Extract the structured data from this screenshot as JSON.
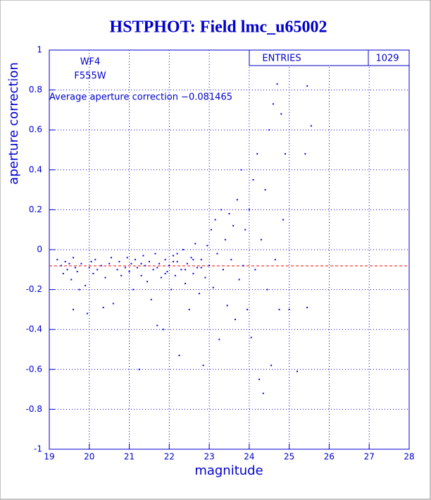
{
  "chart_data": {
    "type": "scatter",
    "title": "HSTPHOT: Field lmc_u65002",
    "x_label": "magnitude",
    "y_label": "aperture correction",
    "annotations": [
      "WF4",
      "F555W",
      "Average aperture correction −0.081465"
    ],
    "stats": {
      "label": "ENTRIES",
      "value": 1029
    },
    "average_line": {
      "value": -0.081465,
      "color": "#ff0000"
    },
    "color": "#0000ff",
    "grid": true,
    "xlim": [
      19,
      28
    ],
    "xticks": [
      19,
      20,
      21,
      22,
      23,
      24,
      25,
      26,
      27,
      28
    ],
    "ylim": [
      -1,
      1
    ],
    "yticks": [
      -1,
      -0.8,
      -0.6,
      -0.4,
      -0.2,
      0,
      0.2,
      0.4,
      0.6,
      0.8,
      1
    ],
    "x": [
      19.2,
      19.3,
      19.35,
      19.4,
      19.45,
      19.5,
      19.55,
      19.6,
      19.65,
      19.7,
      19.75,
      19.6,
      19.8,
      19.9,
      19.95,
      20.0,
      20.05,
      20.1,
      20.15,
      20.2,
      20.3,
      20.35,
      20.4,
      20.5,
      20.55,
      20.6,
      20.7,
      20.75,
      20.8,
      20.9,
      20.95,
      21.0,
      21.05,
      21.1,
      21.15,
      21.2,
      21.25,
      21.3,
      21.35,
      21.4,
      21.45,
      21.5,
      21.55,
      21.6,
      21.65,
      21.7,
      21.75,
      21.8,
      21.85,
      21.9,
      21.95,
      22.0,
      22.05,
      22.1,
      22.15,
      22.2,
      22.25,
      22.3,
      22.35,
      22.4,
      22.45,
      22.5,
      22.55,
      22.6,
      22.65,
      22.7,
      22.75,
      22.8,
      22.85,
      22.9,
      22.95,
      23.0,
      23.05,
      23.1,
      23.15,
      23.2,
      23.25,
      23.3,
      23.35,
      23.4,
      23.45,
      23.5,
      23.55,
      23.6,
      23.65,
      23.7,
      23.75,
      23.8,
      23.85,
      23.9,
      23.95,
      24.0,
      24.05,
      24.1,
      24.15,
      24.2,
      24.25,
      24.3,
      24.35,
      24.4,
      24.45,
      24.5,
      24.55,
      24.6,
      24.65,
      24.7,
      24.75,
      24.8,
      24.85,
      24.9,
      25.0,
      25.2,
      25.45,
      25.45,
      25.4,
      25.55,
      21.3,
      21.7,
      22.1,
      22.4,
      22.6,
      22.8,
      21.9,
      22.2
    ],
    "values": [
      -0.05,
      -0.08,
      -0.12,
      -0.06,
      -0.1,
      -0.07,
      -0.15,
      -0.04,
      -0.09,
      -0.11,
      -0.2,
      -0.3,
      -0.07,
      -0.18,
      -0.32,
      -0.09,
      -0.06,
      -0.12,
      -0.05,
      -0.1,
      -0.08,
      -0.29,
      -0.14,
      -0.07,
      -0.04,
      -0.27,
      -0.1,
      -0.06,
      -0.13,
      -0.09,
      -0.04,
      -0.11,
      -0.07,
      -0.2,
      -0.05,
      -0.09,
      -0.6,
      -0.13,
      -0.03,
      -0.08,
      -0.16,
      -0.06,
      -0.25,
      -0.1,
      -0.02,
      -0.38,
      -0.07,
      -0.14,
      -0.4,
      -0.05,
      -0.11,
      -0.08,
      -0.2,
      -0.03,
      -0.13,
      -0.06,
      -0.53,
      -0.1,
      0.0,
      -0.17,
      -0.07,
      -0.3,
      -0.04,
      -0.12,
      0.03,
      -0.09,
      -0.22,
      -0.05,
      -0.58,
      -0.14,
      0.02,
      -0.08,
      0.1,
      -0.19,
      0.15,
      -0.02,
      -0.45,
      0.2,
      -0.1,
      0.05,
      -0.28,
      0.18,
      -0.05,
      0.12,
      -0.35,
      0.25,
      -0.15,
      0.4,
      -0.08,
      0.1,
      -0.3,
      0.2,
      -0.44,
      0.35,
      -0.1,
      0.48,
      -0.65,
      0.05,
      -0.72,
      0.3,
      -0.2,
      0.6,
      -0.58,
      0.73,
      -0.05,
      0.83,
      -0.3,
      0.68,
      0.15,
      0.48,
      -0.3,
      -0.61,
      0.82,
      -0.29,
      0.48,
      0.62,
      -0.07,
      -0.09,
      -0.06,
      -0.1,
      -0.05,
      -0.09,
      -0.12,
      -0.02
    ]
  }
}
